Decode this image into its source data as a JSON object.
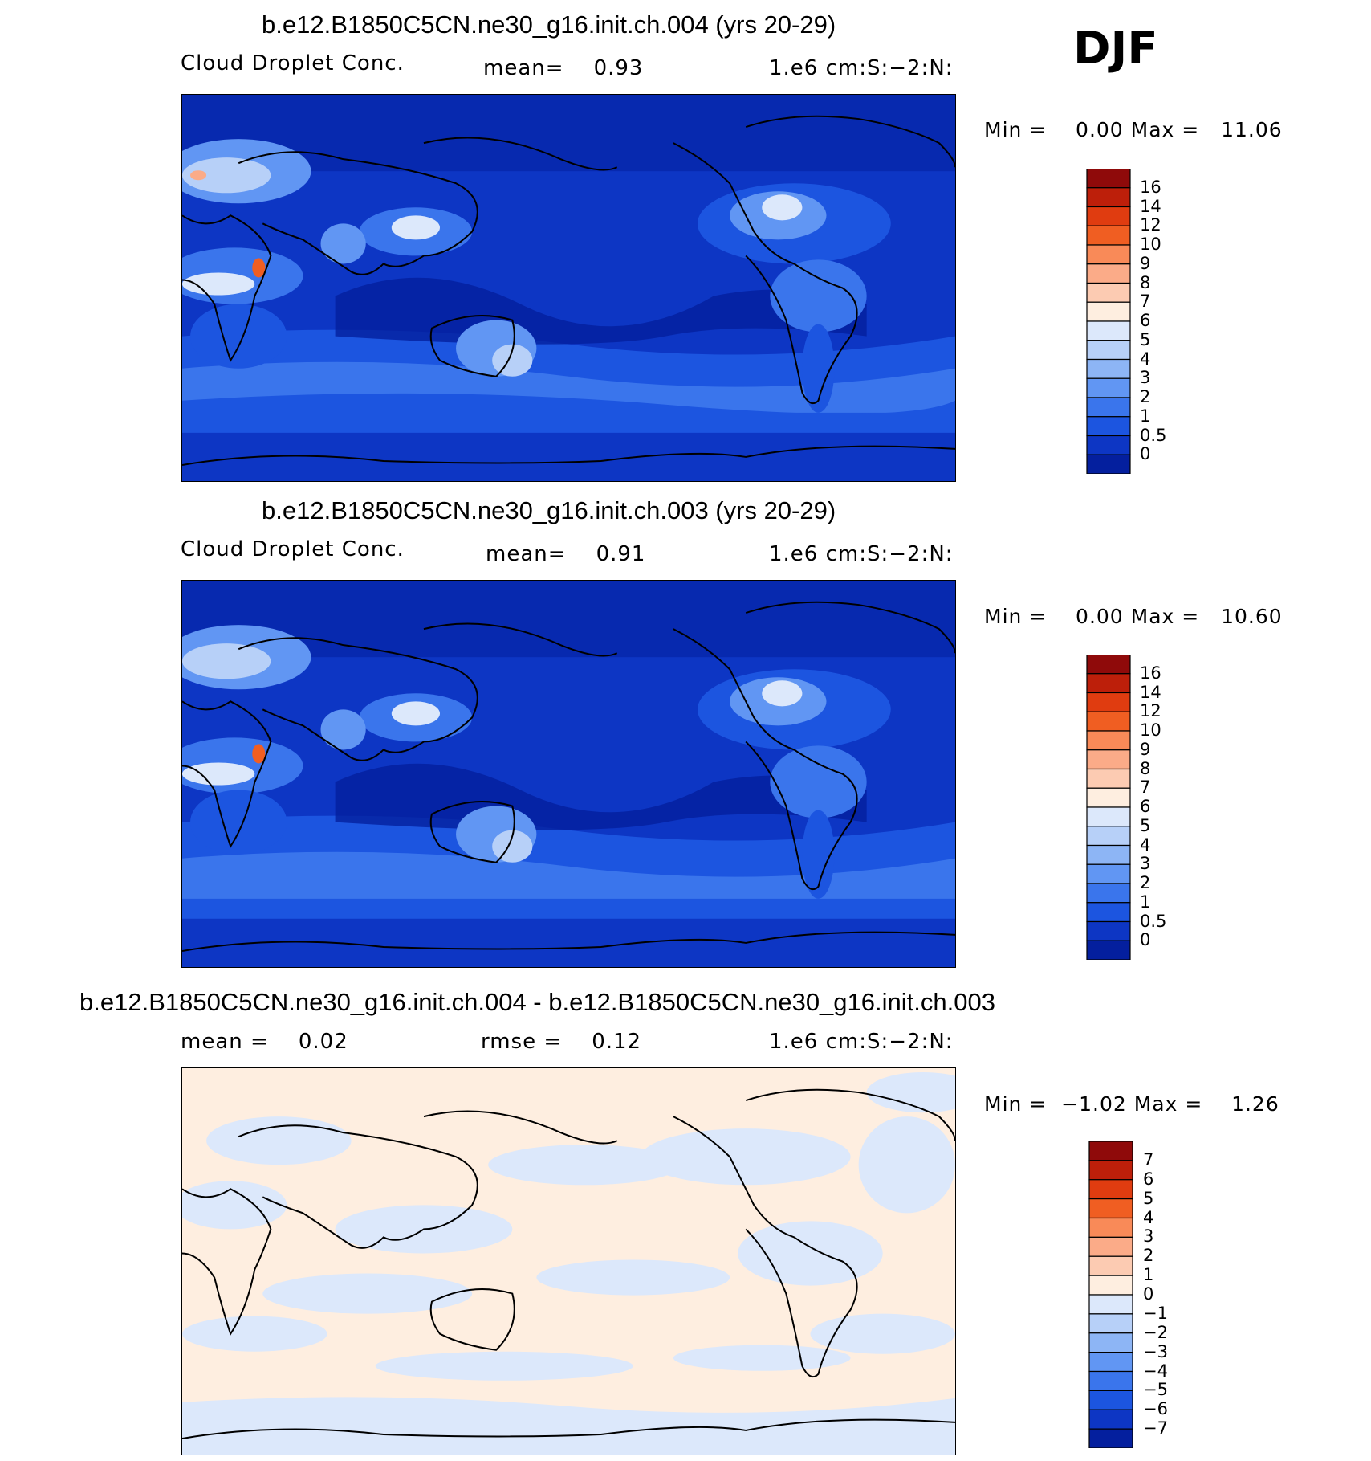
{
  "season": "DJF",
  "panels": [
    {
      "title": "b.e12.B1850C5CN.ne30_g16.init.ch.004 (yrs 20-29)",
      "left": "Cloud Droplet Conc.",
      "middle": "mean=    0.93",
      "right": "1.e6 cm:S:−2:N:",
      "minmax": "Min =    0.00 Max =   11.06",
      "palette": "full"
    },
    {
      "title": "b.e12.B1850C5CN.ne30_g16.init.ch.003 (yrs 20-29)",
      "left": "Cloud Droplet Conc.",
      "middle": "mean=    0.91",
      "right": "1.e6 cm:S:−2:N:",
      "minmax": "Min =    0.00 Max =   10.60",
      "palette": "full"
    },
    {
      "title": "b.e12.B1850C5CN.ne30_g16.init.ch.004 - b.e12.B1850C5CN.ne30_g16.init.ch.003",
      "left": "mean =    0.02",
      "middle": "rmse =    0.12",
      "right": "1.e6 cm:S:−2:N:",
      "minmax": "Min =  −1.02 Max =    1.26",
      "palette": "diff"
    }
  ],
  "chart_data": [
    {
      "type": "heatmap",
      "title": "b.e12.B1850C5CN.ne30_g16.init.ch.004 (yrs 20-29)",
      "variable": "Cloud Droplet Conc.",
      "units": "1.e6 cm:S:−2:N:",
      "mean": 0.93,
      "min": 0.0,
      "max": 11.06,
      "colorbar_levels": [
        "16",
        "14",
        "12",
        "10",
        "9",
        "8",
        "7",
        "6",
        "5",
        "4",
        "3",
        "2",
        "1",
        "0.5",
        "0"
      ],
      "colorbar_colors": [
        "#8f0a0a",
        "#bd1f0a",
        "#e03c10",
        "#f05e22",
        "#f98a58",
        "#fbab88",
        "#fccbb2",
        "#feeee0",
        "#dce8fb",
        "#b7d0f8",
        "#8db5f5",
        "#6196f3",
        "#3a75ec",
        "#1c55e0",
        "#0d36c4",
        "#041f9e"
      ]
    },
    {
      "type": "heatmap",
      "title": "b.e12.B1850C5CN.ne30_g16.init.ch.003 (yrs 20-29)",
      "variable": "Cloud Droplet Conc.",
      "units": "1.e6 cm:S:−2:N:",
      "mean": 0.91,
      "min": 0.0,
      "max": 10.6,
      "colorbar_levels": [
        "16",
        "14",
        "12",
        "10",
        "9",
        "8",
        "7",
        "6",
        "5",
        "4",
        "3",
        "2",
        "1",
        "0.5",
        "0"
      ],
      "colorbar_colors": [
        "#8f0a0a",
        "#bd1f0a",
        "#e03c10",
        "#f05e22",
        "#f98a58",
        "#fbab88",
        "#fccbb2",
        "#feeee0",
        "#dce8fb",
        "#b7d0f8",
        "#8db5f5",
        "#6196f3",
        "#3a75ec",
        "#1c55e0",
        "#0d36c4",
        "#041f9e"
      ]
    },
    {
      "type": "heatmap",
      "title": "b.e12.B1850C5CN.ne30_g16.init.ch.004 - b.e12.B1850C5CN.ne30_g16.init.ch.003",
      "units": "1.e6 cm:S:−2:N:",
      "mean": 0.02,
      "rmse": 0.12,
      "min": -1.02,
      "max": 1.26,
      "colorbar_levels": [
        "7",
        "6",
        "5",
        "4",
        "3",
        "2",
        "1",
        "0",
        "−1",
        "−2",
        "−3",
        "−4",
        "−5",
        "−6",
        "−7"
      ],
      "colorbar_colors": [
        "#8f0a0a",
        "#bd1f0a",
        "#e03c10",
        "#f05e22",
        "#f98a58",
        "#fbab88",
        "#fccbb2",
        "#feeee0",
        "#dce8fb",
        "#b7d0f8",
        "#8db5f5",
        "#6196f3",
        "#3a75ec",
        "#1c55e0",
        "#0d36c4",
        "#041f9e"
      ]
    }
  ]
}
